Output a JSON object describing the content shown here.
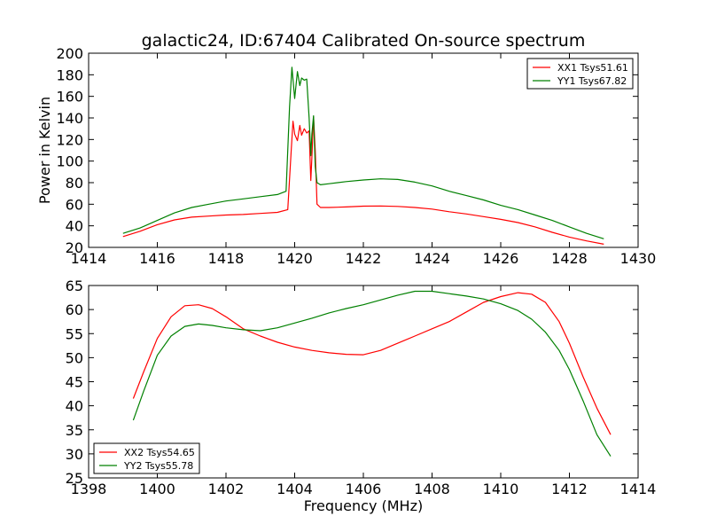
{
  "chart_data": [
    {
      "type": "line",
      "title": "galactic24, ID:67404 Calibrated On-source spectrum",
      "xlabel": "",
      "ylabel": "Power in Kelvin",
      "xlim": [
        1414,
        1430
      ],
      "ylim": [
        20,
        200
      ],
      "xticks": [
        "1414",
        "1416",
        "1418",
        "1420",
        "1422",
        "1424",
        "1426",
        "1428",
        "1430"
      ],
      "yticks": [
        "20",
        "40",
        "60",
        "80",
        "100",
        "120",
        "140",
        "160",
        "180",
        "200"
      ],
      "grid": false,
      "legend_position": "top-right",
      "series": [
        {
          "name": "XX1 Tsys51.61",
          "color": "#ff0000",
          "x": [
            1415.0,
            1415.5,
            1416.0,
            1416.5,
            1417.0,
            1417.5,
            1418.0,
            1418.5,
            1419.0,
            1419.5,
            1419.8,
            1419.9,
            1419.95,
            1420.0,
            1420.08,
            1420.15,
            1420.2,
            1420.28,
            1420.35,
            1420.42,
            1420.47,
            1420.5,
            1420.55,
            1420.6,
            1420.65,
            1420.75,
            1421.0,
            1421.5,
            1422.0,
            1422.5,
            1423.0,
            1423.5,
            1424.0,
            1424.5,
            1425.0,
            1425.5,
            1426.0,
            1426.5,
            1427.0,
            1427.5,
            1428.0,
            1428.5,
            1429.0
          ],
          "y": [
            30,
            35,
            41,
            45.5,
            48,
            49,
            50,
            50.5,
            51.5,
            52.5,
            55,
            110,
            137,
            125,
            119,
            133,
            124,
            130,
            126,
            128,
            82,
            103,
            141,
            110,
            60,
            57,
            57,
            57.5,
            58.2,
            58.4,
            58,
            57,
            55.5,
            53,
            51,
            48.5,
            46,
            43,
            39,
            34,
            29.5,
            26,
            23
          ]
        },
        {
          "name": "YY1 Tsys67.82",
          "color": "#008000",
          "x": [
            1415.0,
            1415.5,
            1416.0,
            1416.5,
            1417.0,
            1417.5,
            1418.0,
            1418.5,
            1419.0,
            1419.5,
            1419.75,
            1419.85,
            1419.92,
            1420.0,
            1420.08,
            1420.15,
            1420.2,
            1420.28,
            1420.35,
            1420.42,
            1420.47,
            1420.5,
            1420.55,
            1420.6,
            1420.65,
            1420.75,
            1421.0,
            1421.5,
            1422.0,
            1422.5,
            1423.0,
            1423.5,
            1424.0,
            1424.5,
            1425.0,
            1425.5,
            1426.0,
            1426.5,
            1427.0,
            1427.5,
            1428.0,
            1428.5,
            1429.0
          ],
          "y": [
            33,
            38,
            45,
            52,
            57,
            60,
            63,
            65,
            67,
            69,
            72,
            150,
            187,
            158,
            183,
            170,
            177,
            175,
            176,
            140,
            105,
            125,
            142,
            95,
            80,
            78,
            79,
            81,
            82.5,
            83.5,
            83,
            80.5,
            77,
            72,
            68,
            64,
            59,
            55,
            50,
            45,
            39,
            33,
            28
          ]
        }
      ]
    },
    {
      "type": "line",
      "title": "",
      "xlabel": "Frequency (MHz)",
      "ylabel": "",
      "xlim": [
        1398,
        1414
      ],
      "ylim": [
        25,
        65
      ],
      "xticks": [
        "1398",
        "1400",
        "1402",
        "1404",
        "1406",
        "1408",
        "1410",
        "1412",
        "1414"
      ],
      "yticks": [
        "25",
        "30",
        "35",
        "40",
        "45",
        "50",
        "55",
        "60",
        "65"
      ],
      "grid": false,
      "legend_position": "bottom-left",
      "series": [
        {
          "name": "XX2 Tsys54.65",
          "color": "#ff0000",
          "x": [
            1399.3,
            1399.6,
            1400.0,
            1400.4,
            1400.8,
            1401.2,
            1401.6,
            1402.0,
            1402.5,
            1403.0,
            1403.5,
            1404.0,
            1404.5,
            1405.0,
            1405.5,
            1406.0,
            1406.5,
            1407.0,
            1407.5,
            1408.0,
            1408.5,
            1409.0,
            1409.5,
            1410.0,
            1410.5,
            1410.9,
            1411.3,
            1411.7,
            1412.0,
            1412.4,
            1412.8,
            1413.2
          ],
          "y": [
            41.5,
            47,
            54,
            58.5,
            60.8,
            61,
            60.2,
            58.5,
            56,
            54.5,
            53.2,
            52.2,
            51.5,
            51,
            50.7,
            50.6,
            51.5,
            53,
            54.5,
            56,
            57.5,
            59.5,
            61.5,
            62.7,
            63.5,
            63.2,
            61.5,
            57.5,
            53,
            46,
            39.5,
            34
          ]
        },
        {
          "name": "YY2 Tsys55.78",
          "color": "#008000",
          "x": [
            1399.3,
            1399.6,
            1400.0,
            1400.4,
            1400.8,
            1401.2,
            1401.6,
            1402.0,
            1402.5,
            1403.0,
            1403.5,
            1404.0,
            1404.5,
            1405.0,
            1405.5,
            1406.0,
            1406.5,
            1407.0,
            1407.5,
            1408.0,
            1408.5,
            1409.0,
            1409.5,
            1410.0,
            1410.5,
            1410.9,
            1411.3,
            1411.7,
            1412.0,
            1412.4,
            1412.8,
            1413.2
          ],
          "y": [
            37,
            43,
            50.5,
            54.5,
            56.5,
            57,
            56.7,
            56.2,
            55.8,
            55.6,
            56.2,
            57.2,
            58.2,
            59.3,
            60.2,
            61,
            62,
            63,
            63.8,
            63.8,
            63.3,
            62.8,
            62.2,
            61.2,
            59.8,
            58,
            55.3,
            51.5,
            47.5,
            41,
            34,
            29.5
          ]
        }
      ]
    }
  ]
}
